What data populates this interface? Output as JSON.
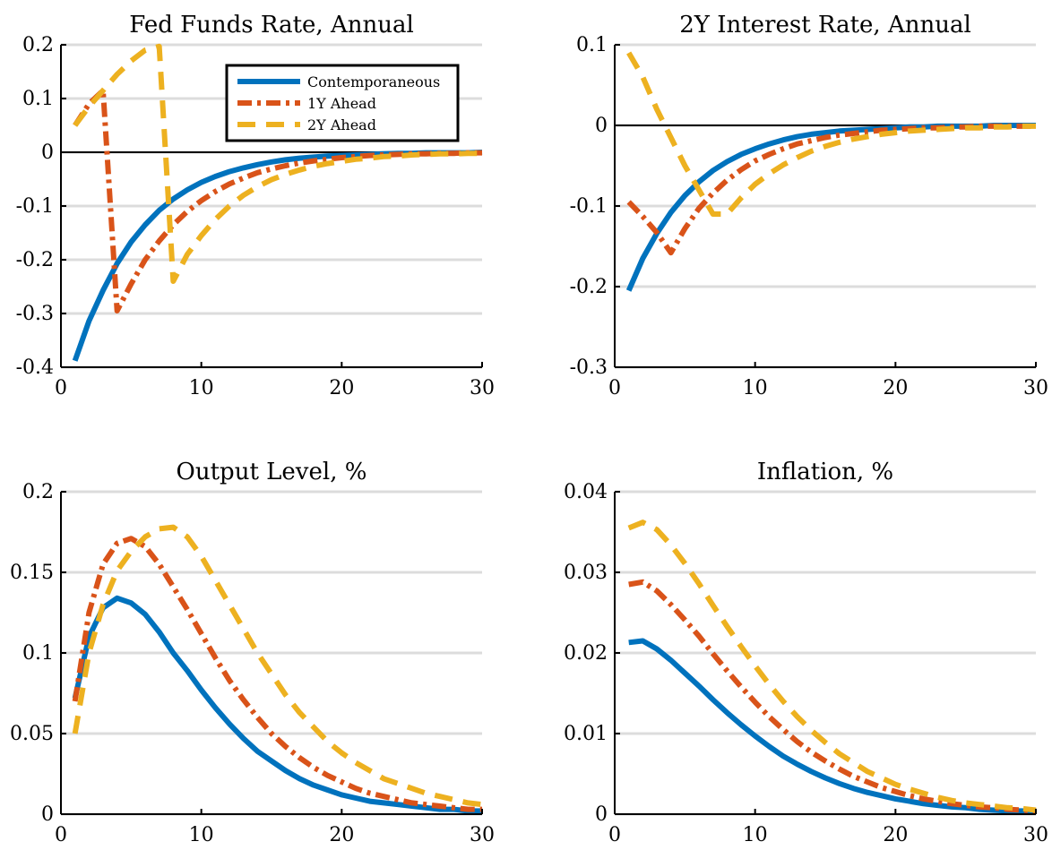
{
  "chart_data": [
    {
      "type": "line",
      "title": "Fed Funds Rate, Annual",
      "xlabel": "",
      "ylabel": "",
      "xlim": [
        0,
        30
      ],
      "ylim": [
        -0.4,
        0.2
      ],
      "xticks": [
        0,
        10,
        20,
        30
      ],
      "xtick_labels": [
        "0",
        "10",
        "20",
        "30"
      ],
      "yticks": [
        -0.4,
        -0.3,
        -0.2,
        -0.1,
        0,
        0.1,
        0.2
      ],
      "ytick_labels": [
        "-0.4",
        "-0.3",
        "-0.2",
        "-0.1",
        "0",
        "0.1",
        "0.2"
      ],
      "grid": "horizontal",
      "zero_line": true,
      "legend": {
        "placement": "top-right",
        "entries": [
          "Contemporaneous",
          "1Y Ahead",
          "2Y Ahead"
        ]
      },
      "series": [
        {
          "name": "Contemporaneous",
          "color": "#0072BD",
          "style": "solid",
          "x": [
            1,
            2,
            3,
            4,
            5,
            6,
            7,
            8,
            9,
            10,
            11,
            12,
            13,
            14,
            15,
            16,
            17,
            18,
            19,
            20,
            21,
            22,
            23,
            24,
            25,
            26,
            27,
            28,
            29,
            30
          ],
          "y": [
            -0.388,
            -0.314,
            -0.257,
            -0.207,
            -0.167,
            -0.135,
            -0.108,
            -0.087,
            -0.07,
            -0.056,
            -0.045,
            -0.036,
            -0.029,
            -0.023,
            -0.018,
            -0.014,
            -0.011,
            -0.009,
            -0.007,
            -0.006,
            -0.005,
            -0.004,
            -0.003,
            -0.002,
            -0.002,
            -0.001,
            -0.001,
            -0.001,
            -0.001,
            0.0
          ]
        },
        {
          "name": "1Y Ahead",
          "color": "#D95319",
          "style": "dashdot",
          "x": [
            1,
            2,
            3,
            4,
            5,
            6,
            7,
            8,
            9,
            10,
            11,
            12,
            13,
            14,
            15,
            16,
            17,
            18,
            19,
            20,
            21,
            22,
            23,
            24,
            25,
            26,
            27,
            28,
            29,
            30
          ],
          "y": [
            0.05,
            0.09,
            0.115,
            -0.295,
            -0.245,
            -0.2,
            -0.165,
            -0.135,
            -0.11,
            -0.09,
            -0.073,
            -0.059,
            -0.048,
            -0.038,
            -0.031,
            -0.025,
            -0.02,
            -0.016,
            -0.013,
            -0.01,
            -0.008,
            -0.006,
            -0.005,
            -0.004,
            -0.003,
            -0.003,
            -0.002,
            -0.002,
            -0.001,
            -0.001
          ]
        },
        {
          "name": "2Y Ahead",
          "color": "#EDB120",
          "style": "dashed",
          "x": [
            1,
            2,
            3,
            4,
            5,
            6,
            7,
            8,
            9,
            10,
            11,
            12,
            13,
            14,
            15,
            16,
            17,
            18,
            19,
            20,
            21,
            22,
            23,
            24,
            25,
            26,
            27,
            28,
            29,
            30
          ],
          "y": [
            0.05,
            0.085,
            0.115,
            0.145,
            0.17,
            0.19,
            0.197,
            -0.24,
            -0.19,
            -0.155,
            -0.125,
            -0.1,
            -0.08,
            -0.064,
            -0.051,
            -0.041,
            -0.033,
            -0.026,
            -0.021,
            -0.017,
            -0.013,
            -0.011,
            -0.008,
            -0.007,
            -0.005,
            -0.004,
            -0.003,
            -0.003,
            -0.002,
            -0.002
          ]
        }
      ]
    },
    {
      "type": "line",
      "title": "2Y Interest Rate, Annual",
      "xlabel": "",
      "ylabel": "",
      "xlim": [
        0,
        30
      ],
      "ylim": [
        -0.3,
        0.1
      ],
      "xticks": [
        0,
        10,
        20,
        30
      ],
      "xtick_labels": [
        "0",
        "10",
        "20",
        "30"
      ],
      "yticks": [
        -0.3,
        -0.2,
        -0.1,
        0,
        0.1
      ],
      "ytick_labels": [
        "-0.3",
        "-0.2",
        "-0.1",
        "0",
        "0.1"
      ],
      "grid": "horizontal",
      "zero_line": true,
      "series": [
        {
          "name": "Contemporaneous",
          "color": "#0072BD",
          "style": "solid",
          "x": [
            1,
            2,
            3,
            4,
            5,
            6,
            7,
            8,
            9,
            10,
            11,
            12,
            13,
            14,
            15,
            16,
            17,
            18,
            19,
            20,
            21,
            22,
            23,
            24,
            25,
            26,
            27,
            28,
            29,
            30
          ],
          "y": [
            -0.205,
            -0.165,
            -0.134,
            -0.108,
            -0.087,
            -0.07,
            -0.056,
            -0.045,
            -0.036,
            -0.029,
            -0.023,
            -0.018,
            -0.014,
            -0.011,
            -0.009,
            -0.007,
            -0.006,
            -0.005,
            -0.004,
            -0.003,
            -0.002,
            -0.002,
            -0.001,
            -0.001,
            -0.001,
            -0.001,
            0.0,
            0.0,
            0.0,
            0.0
          ]
        },
        {
          "name": "1Y Ahead",
          "color": "#D95319",
          "style": "dashdot",
          "x": [
            1,
            2,
            3,
            4,
            5,
            6,
            7,
            8,
            9,
            10,
            11,
            12,
            13,
            14,
            15,
            16,
            17,
            18,
            19,
            20,
            21,
            22,
            23,
            24,
            25,
            26,
            27,
            28,
            29,
            30
          ],
          "y": [
            -0.095,
            -0.113,
            -0.133,
            -0.158,
            -0.128,
            -0.103,
            -0.084,
            -0.068,
            -0.055,
            -0.044,
            -0.036,
            -0.029,
            -0.023,
            -0.019,
            -0.015,
            -0.012,
            -0.01,
            -0.008,
            -0.006,
            -0.005,
            -0.004,
            -0.003,
            -0.003,
            -0.002,
            -0.002,
            -0.001,
            -0.001,
            -0.001,
            -0.001,
            -0.001
          ]
        },
        {
          "name": "2Y Ahead",
          "color": "#EDB120",
          "style": "dashed",
          "x": [
            1,
            2,
            3,
            4,
            5,
            6,
            7,
            8,
            9,
            10,
            11,
            12,
            13,
            14,
            15,
            16,
            17,
            18,
            19,
            20,
            21,
            22,
            23,
            24,
            25,
            26,
            27,
            28,
            29,
            30
          ],
          "y": [
            0.09,
            0.06,
            0.02,
            -0.015,
            -0.05,
            -0.08,
            -0.11,
            -0.11,
            -0.09,
            -0.073,
            -0.06,
            -0.049,
            -0.04,
            -0.032,
            -0.026,
            -0.021,
            -0.017,
            -0.014,
            -0.011,
            -0.009,
            -0.007,
            -0.006,
            -0.005,
            -0.004,
            -0.003,
            -0.003,
            -0.002,
            -0.002,
            -0.001,
            -0.001
          ]
        }
      ]
    },
    {
      "type": "line",
      "title": "Output Level, %",
      "xlabel": "",
      "ylabel": "",
      "xlim": [
        0,
        30
      ],
      "ylim": [
        0,
        0.2
      ],
      "xticks": [
        0,
        10,
        20,
        30
      ],
      "xtick_labels": [
        "0",
        "10",
        "20",
        "30"
      ],
      "yticks": [
        0,
        0.05,
        0.1,
        0.15,
        0.2
      ],
      "ytick_labels": [
        "0",
        "0.05",
        "0.1",
        "0.15",
        "0.2"
      ],
      "grid": "horizontal",
      "zero_line": false,
      "series": [
        {
          "name": "Contemporaneous",
          "color": "#0072BD",
          "style": "solid",
          "x": [
            1,
            2,
            3,
            4,
            5,
            6,
            7,
            8,
            9,
            10,
            11,
            12,
            13,
            14,
            15,
            16,
            17,
            18,
            19,
            20,
            21,
            22,
            23,
            24,
            25,
            26,
            27,
            28,
            29,
            30
          ],
          "y": [
            0.072,
            0.11,
            0.128,
            0.134,
            0.131,
            0.124,
            0.113,
            0.1,
            0.089,
            0.077,
            0.066,
            0.056,
            0.047,
            0.039,
            0.033,
            0.027,
            0.022,
            0.018,
            0.015,
            0.012,
            0.01,
            0.008,
            0.007,
            0.006,
            0.005,
            0.004,
            0.003,
            0.003,
            0.002,
            0.002
          ]
        },
        {
          "name": "1Y Ahead",
          "color": "#D95319",
          "style": "dashdot",
          "x": [
            1,
            2,
            3,
            4,
            5,
            6,
            7,
            8,
            9,
            10,
            11,
            12,
            13,
            14,
            15,
            16,
            17,
            18,
            19,
            20,
            21,
            22,
            23,
            24,
            25,
            26,
            27,
            28,
            29,
            30
          ],
          "y": [
            0.07,
            0.125,
            0.155,
            0.168,
            0.171,
            0.166,
            0.155,
            0.141,
            0.127,
            0.112,
            0.097,
            0.083,
            0.071,
            0.06,
            0.05,
            0.042,
            0.035,
            0.029,
            0.024,
            0.02,
            0.016,
            0.013,
            0.011,
            0.009,
            0.007,
            0.006,
            0.005,
            0.004,
            0.003,
            0.003
          ]
        },
        {
          "name": "2Y Ahead",
          "color": "#EDB120",
          "style": "dashed",
          "x": [
            1,
            2,
            3,
            4,
            5,
            6,
            7,
            8,
            9,
            10,
            11,
            12,
            13,
            14,
            15,
            16,
            17,
            18,
            19,
            20,
            21,
            22,
            23,
            24,
            25,
            26,
            27,
            28,
            29,
            30
          ],
          "y": [
            0.05,
            0.1,
            0.13,
            0.151,
            0.163,
            0.172,
            0.177,
            0.178,
            0.172,
            0.16,
            0.145,
            0.13,
            0.115,
            0.1,
            0.087,
            0.074,
            0.063,
            0.054,
            0.045,
            0.038,
            0.032,
            0.027,
            0.022,
            0.019,
            0.016,
            0.013,
            0.011,
            0.009,
            0.007,
            0.006
          ]
        }
      ]
    },
    {
      "type": "line",
      "title": "Inflation, %",
      "xlabel": "",
      "ylabel": "",
      "xlim": [
        0,
        30
      ],
      "ylim": [
        0,
        0.04
      ],
      "xticks": [
        0,
        10,
        20,
        30
      ],
      "xtick_labels": [
        "0",
        "10",
        "20",
        "30"
      ],
      "yticks": [
        0,
        0.01,
        0.02,
        0.03,
        0.04
      ],
      "ytick_labels": [
        "0",
        "0.01",
        "0.02",
        "0.03",
        "0.04"
      ],
      "grid": "horizontal",
      "zero_line": false,
      "series": [
        {
          "name": "Contemporaneous",
          "color": "#0072BD",
          "style": "solid",
          "x": [
            1,
            2,
            3,
            4,
            5,
            6,
            7,
            8,
            9,
            10,
            11,
            12,
            13,
            14,
            15,
            16,
            17,
            18,
            19,
            20,
            21,
            22,
            23,
            24,
            25,
            26,
            27,
            28,
            29,
            30
          ],
          "y": [
            0.0213,
            0.0215,
            0.0205,
            0.0191,
            0.0175,
            0.0159,
            0.0142,
            0.0126,
            0.0111,
            0.0097,
            0.0084,
            0.0072,
            0.0062,
            0.0053,
            0.0045,
            0.0038,
            0.0032,
            0.0027,
            0.0023,
            0.0019,
            0.0016,
            0.0013,
            0.0011,
            0.0009,
            0.0008,
            0.0006,
            0.0005,
            0.0004,
            0.0004,
            0.0003
          ]
        },
        {
          "name": "1Y Ahead",
          "color": "#D95319",
          "style": "dashdot",
          "x": [
            1,
            2,
            3,
            4,
            5,
            6,
            7,
            8,
            9,
            10,
            11,
            12,
            13,
            14,
            15,
            16,
            17,
            18,
            19,
            20,
            21,
            22,
            23,
            24,
            25,
            26,
            27,
            28,
            29,
            30
          ],
          "y": [
            0.0285,
            0.0288,
            0.0277,
            0.026,
            0.0241,
            0.0221,
            0.0199,
            0.0178,
            0.0158,
            0.0139,
            0.0121,
            0.0105,
            0.009,
            0.0077,
            0.0066,
            0.0056,
            0.0047,
            0.004,
            0.0033,
            0.0028,
            0.0023,
            0.0019,
            0.0016,
            0.0013,
            0.0011,
            0.0009,
            0.0008,
            0.0006,
            0.0005,
            0.0004
          ]
        },
        {
          "name": "2Y Ahead",
          "color": "#EDB120",
          "style": "dashed",
          "x": [
            1,
            2,
            3,
            4,
            5,
            6,
            7,
            8,
            9,
            10,
            11,
            12,
            13,
            14,
            15,
            16,
            17,
            18,
            19,
            20,
            21,
            22,
            23,
            24,
            25,
            26,
            27,
            28,
            29,
            30
          ],
          "y": [
            0.0355,
            0.0362,
            0.0353,
            0.0334,
            0.0311,
            0.0286,
            0.0259,
            0.0233,
            0.0208,
            0.0184,
            0.0161,
            0.014,
            0.0121,
            0.0104,
            0.0089,
            0.0075,
            0.0064,
            0.0053,
            0.0045,
            0.0037,
            0.0031,
            0.0026,
            0.0021,
            0.0017,
            0.0014,
            0.0012,
            0.001,
            0.0008,
            0.0007,
            0.0005
          ]
        }
      ]
    }
  ]
}
